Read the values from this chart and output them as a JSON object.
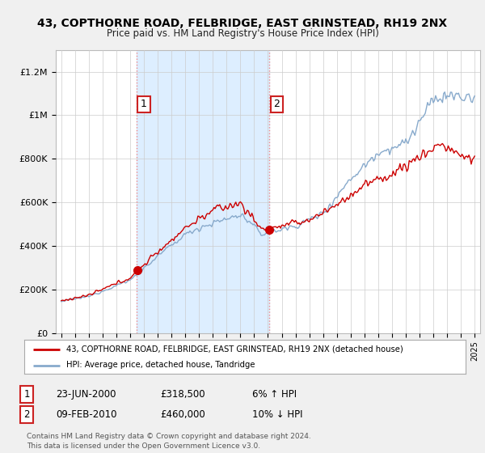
{
  "title": "43, COPTHORNE ROAD, FELBRIDGE, EAST GRINSTEAD, RH19 2NX",
  "subtitle": "Price paid vs. HM Land Registry's House Price Index (HPI)",
  "ylabel_ticks": [
    "£0",
    "£200K",
    "£400K",
    "£600K",
    "£800K",
    "£1M",
    "£1.2M"
  ],
  "ytick_vals": [
    0,
    200000,
    400000,
    600000,
    800000,
    1000000,
    1200000
  ],
  "ylim": [
    0,
    1300000
  ],
  "xlim_left": 1994.6,
  "xlim_right": 2025.4,
  "sale1_x": 2000.47,
  "sale1_y": 318500,
  "sale2_x": 2010.1,
  "sale2_y": 460000,
  "sale1_label": "1",
  "sale2_label": "2",
  "sale1_date": "23-JUN-2000",
  "sale1_price": "£318,500",
  "sale1_pct": "6% ↑ HPI",
  "sale2_date": "09-FEB-2010",
  "sale2_price": "£460,000",
  "sale2_pct": "10% ↓ HPI",
  "legend_line1": "43, COPTHORNE ROAD, FELBRIDGE, EAST GRINSTEAD, RH19 2NX (detached house)",
  "legend_line2": "HPI: Average price, detached house, Tandridge",
  "footer": "Contains HM Land Registry data © Crown copyright and database right 2024.\nThis data is licensed under the Open Government Licence v3.0.",
  "line_color_red": "#cc0000",
  "line_color_blue": "#88aacc",
  "vline_color": "#ee8888",
  "shade_color": "#ddeeff",
  "background_color": "#f0f0f0",
  "plot_bg": "#ffffff",
  "grid_color": "#cccccc",
  "marker_color": "#cc0000",
  "label_box_edge": "#cc2222"
}
